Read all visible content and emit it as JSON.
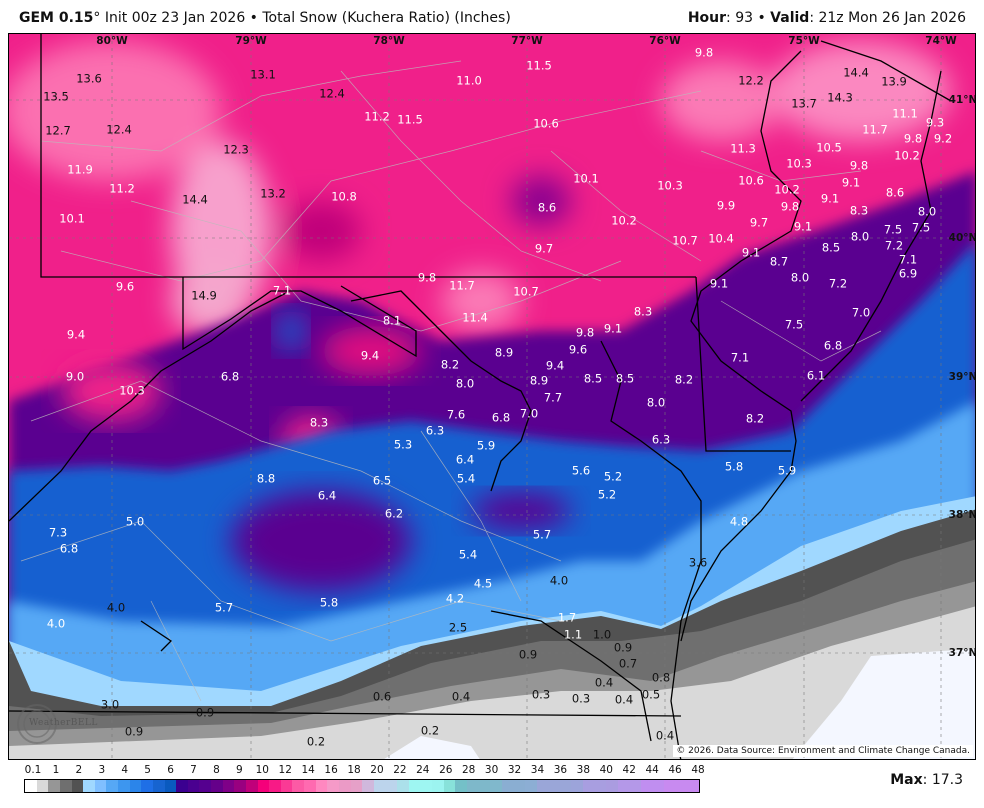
{
  "header": {
    "model": "GEM 0.15",
    "degree": "°",
    "title_rest": " Init 00z 23 Jan 2026 • Total Snow (Kuchera Ratio) (Inches)",
    "hour_label": "Hour",
    "hour_value": ": 93 • ",
    "valid_label": "Valid",
    "valid_value": ": 21z Mon 26 Jan 2026"
  },
  "map": {
    "longitude_labels": [
      "80°W",
      "79°W",
      "78°W",
      "77°W",
      "76°W",
      "75°W",
      "74°W"
    ],
    "latitude_labels": [
      "41°N",
      "40°N",
      "39°N",
      "38°N",
      "37°N"
    ],
    "snow_labels": [
      "13.6",
      "13.1",
      "12.4",
      "13.5",
      "12.7",
      "12.4",
      "12.3",
      "13.2",
      "14.4",
      "14.9",
      "11.0",
      "11.5",
      "11.2",
      "11.5",
      "10.6",
      "11.9",
      "11.2",
      "10.8",
      "10.1",
      "10.1",
      "8.6",
      "10.2",
      "9.7",
      "10.3",
      "9.8",
      "12.2",
      "14.4",
      "13.9",
      "13.7",
      "14.3",
      "11.7",
      "11.1",
      "9.3",
      "9.8",
      "9.2",
      "10.2",
      "11.3",
      "10.5",
      "9.8",
      "10.3",
      "10.6",
      "9.1",
      "8.6",
      "10.2",
      "9.9",
      "9.8",
      "9.1",
      "8.3",
      "9.7",
      "9.1",
      "8.0",
      "7.5",
      "7.5",
      "8.0",
      "10.7",
      "10.4",
      "9.1",
      "8.7",
      "8.5",
      "7.2",
      "7.1",
      "6.9",
      "9.1",
      "8.0",
      "7.2",
      "7.0",
      "7.5",
      "6.8",
      "7.1",
      "6.1",
      "8.2",
      "5.8",
      "5.9",
      "4.8",
      "3.6",
      "0.8",
      "0.4",
      "9.6",
      "9.8",
      "11.7",
      "10.7",
      "7.1",
      "8.1",
      "11.4",
      "8.3",
      "9.8",
      "9.1",
      "9.4",
      "9.4",
      "8.9",
      "9.6",
      "9.4",
      "6.8",
      "9.0",
      "10.3",
      "8.2",
      "8.0",
      "8.9",
      "8.5",
      "8.5",
      "8.2",
      "7.7",
      "7.0",
      "8.0",
      "7.6",
      "6.8",
      "8.3",
      "5.3",
      "6.3",
      "5.9",
      "6.3",
      "6.4",
      "5.6",
      "5.2",
      "5.4",
      "8.8",
      "6.5",
      "5.2",
      "6.4",
      "6.2",
      "5.0",
      "7.3",
      "6.8",
      "5.7",
      "5.4",
      "4.5",
      "4.0",
      "4.2",
      "5.7",
      "5.8",
      "4.0",
      "4.0",
      "2.5",
      "1.7",
      "1.1",
      "1.0",
      "0.9",
      "0.7",
      "0.9",
      "0.9",
      "0.9",
      "3.0",
      "0.2",
      "0.6",
      "0.4",
      "0.3",
      "0.3",
      "0.4",
      "0.4",
      "0.5",
      "0.2"
    ],
    "copyright": "© 2026. Data Source: Environment and Climate Change Canada.",
    "logo_text": "WeatherBELL"
  },
  "colorbar": {
    "labels": [
      "0.1",
      "1",
      "2",
      "3",
      "4",
      "5",
      "6",
      "7",
      "8",
      "9",
      "10",
      "12",
      "14",
      "16",
      "18",
      "20",
      "22",
      "24",
      "26",
      "28",
      "30",
      "32",
      "34",
      "36",
      "38",
      "40",
      "42",
      "44",
      "46",
      "48"
    ],
    "colors": [
      "#ffffff",
      "#d9d9d9",
      "#969696",
      "#6f6f6f",
      "#525252",
      "#a0d8ff",
      "#80bfff",
      "#56a8f5",
      "#3d96ef",
      "#2b85ea",
      "#1f6fe6",
      "#1764d0",
      "#0a5abf",
      "#3b0090",
      "#4a0090",
      "#55008f",
      "#65008a",
      "#7f0088",
      "#990080",
      "#c0007a",
      "#f5007a",
      "#f81a86",
      "#fa3a95",
      "#fc5aa5",
      "#ff6ab0",
      "#ff88c0",
      "#f59ac8",
      "#eb9ac6",
      "#e6a0c8",
      "#d0b8dc",
      "#bcd4ec",
      "#bcd4ec",
      "#abe0ea",
      "#9ef6f2",
      "#9ef6f2",
      "#9cf4f0",
      "#88e2da",
      "#74c0c8",
      "#7eb8ca",
      "#7eb8ca",
      "#80b8cc",
      "#8aaed2",
      "#8aaed2",
      "#8caed4",
      "#9aa6d8",
      "#9aa6d8",
      "#9aa6d8",
      "#9ca4da",
      "#a89ee0",
      "#a89ee0",
      "#aa9ce0",
      "#b498e8",
      "#b498e8",
      "#c08ef0",
      "#c08ef0",
      "#c88af0",
      "#c88af0",
      "#c88af0"
    ]
  },
  "max": {
    "label": "Max",
    "value": ": 17.3"
  }
}
